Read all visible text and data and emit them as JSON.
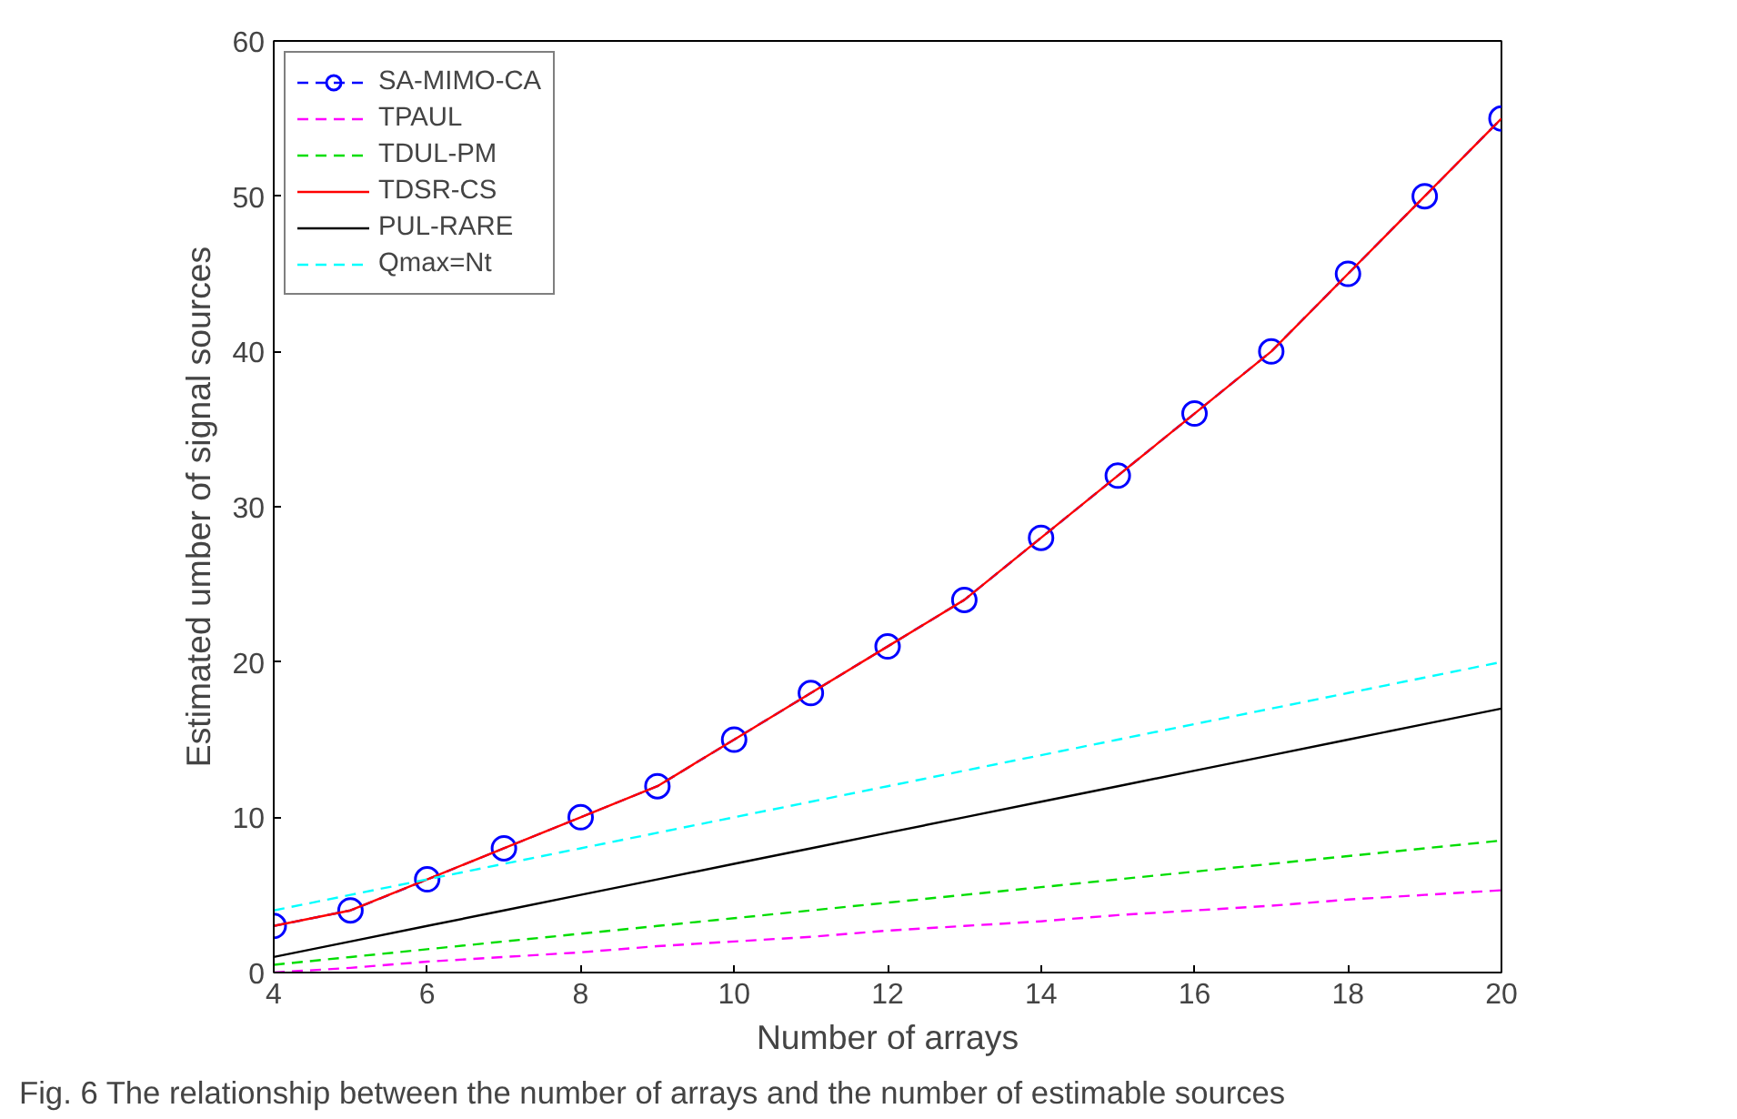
{
  "chart_data": {
    "type": "line",
    "xlabel": "Number of arrays",
    "ylabel": "Estimated umber of signal sources",
    "annotations": [
      "Fig. 6  The relationship between the number of arrays and the number of estimable sources"
    ],
    "x": [
      4,
      5,
      6,
      7,
      8,
      9,
      10,
      11,
      12,
      13,
      14,
      15,
      16,
      17,
      18,
      19,
      20
    ],
    "xlim": [
      4,
      20
    ],
    "xticks": [
      4,
      6,
      8,
      10,
      12,
      14,
      16,
      18,
      20
    ],
    "ylim": [
      0,
      60
    ],
    "yticks": [
      0,
      10,
      20,
      30,
      40,
      50,
      60
    ],
    "grid": false,
    "legend": "top left",
    "series": [
      {
        "name": "SA-MIMO-CA",
        "color": "#0000ff",
        "marker": "circle",
        "line_style": "dashed",
        "values": [
          3,
          4,
          6,
          8,
          10,
          12,
          15,
          18,
          21,
          24,
          28,
          32,
          36,
          40,
          45,
          50,
          55
        ]
      },
      {
        "name": "TPAUL",
        "color": "#ff00ff",
        "marker": "none",
        "line_style": "dashed",
        "values": [
          0,
          0.3,
          0.7,
          1,
          1.3,
          1.7,
          2,
          2.3,
          2.7,
          3,
          3.3,
          3.7,
          4,
          4.3,
          4.7,
          5,
          5.3
        ]
      },
      {
        "name": "TDUL-PM",
        "color": "#00dd00",
        "marker": "none",
        "line_style": "dashed",
        "values": [
          0.5,
          1,
          1.5,
          2,
          2.5,
          3,
          3.5,
          4,
          4.5,
          5,
          5.5,
          6,
          6.5,
          7,
          7.5,
          8,
          8.5
        ]
      },
      {
        "name": "TDSR-CS",
        "color": "#ff0000",
        "marker": "none",
        "line_style": "solid",
        "values": [
          3,
          4,
          6,
          8,
          10,
          12,
          15,
          18,
          21,
          24,
          28,
          32,
          36,
          40,
          45,
          50,
          55
        ]
      },
      {
        "name": "PUL-RARE",
        "color": "#000000",
        "marker": "none",
        "line_style": "solid",
        "values": [
          1,
          2,
          3,
          4,
          5,
          6,
          7,
          8,
          9,
          10,
          11,
          12,
          13,
          14,
          15,
          16,
          17
        ]
      },
      {
        "name": "Qmax=Nt",
        "color": "#00ffff",
        "marker": "none",
        "line_style": "dashed",
        "values": [
          4,
          5,
          6,
          7,
          8,
          9,
          10,
          11,
          12,
          13,
          14,
          15,
          16,
          17,
          18,
          19,
          20
        ]
      }
    ]
  }
}
